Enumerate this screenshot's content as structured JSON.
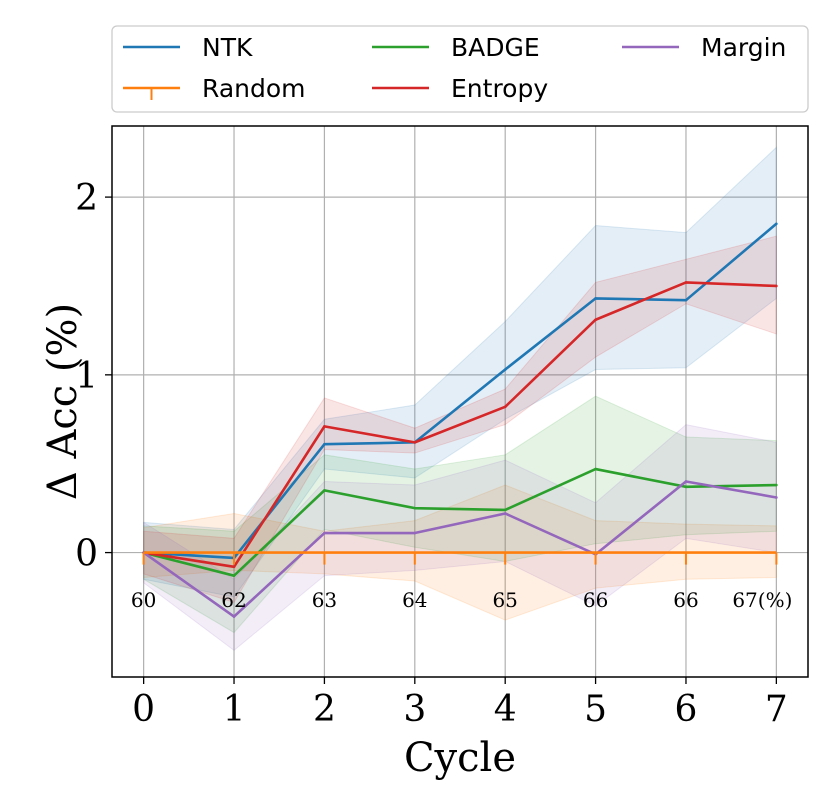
{
  "chart_data": {
    "type": "line",
    "title": "",
    "xlabel": "Cycle",
    "ylabel": "Δ Acc (%)",
    "x": [
      0,
      1,
      2,
      3,
      4,
      5,
      6,
      7
    ],
    "xlim": [
      -0.35,
      7.35
    ],
    "ylim": [
      -0.7,
      2.4
    ],
    "yticks": [
      0,
      1,
      2
    ],
    "grid": true,
    "legend_position": "top",
    "baseline_accuracy_labels": [
      "60",
      "62",
      "63",
      "64",
      "65",
      "66",
      "66",
      "67(%)"
    ],
    "series": [
      {
        "name": "NTK",
        "color": "#1f77b4",
        "values": [
          0.0,
          -0.03,
          0.61,
          0.62,
          1.03,
          1.43,
          1.42,
          1.85
        ],
        "lower": [
          -0.15,
          -0.25,
          0.47,
          0.42,
          0.75,
          1.03,
          1.04,
          1.43
        ],
        "upper": [
          0.17,
          0.13,
          0.75,
          0.83,
          1.3,
          1.84,
          1.8,
          2.28
        ]
      },
      {
        "name": "Random",
        "color": "#ff7f0e",
        "marker": "tick",
        "values": [
          0,
          0,
          0,
          0,
          0,
          0,
          0,
          0
        ],
        "lower": [
          -0.14,
          -0.1,
          -0.12,
          -0.16,
          -0.38,
          -0.2,
          -0.15,
          -0.14
        ],
        "upper": [
          0.14,
          0.22,
          0.12,
          0.18,
          0.38,
          0.18,
          0.16,
          0.15
        ]
      },
      {
        "name": "BADGE",
        "color": "#2ca02c",
        "values": [
          0.0,
          -0.13,
          0.35,
          0.25,
          0.24,
          0.47,
          0.37,
          0.38
        ],
        "lower": [
          -0.15,
          -0.45,
          0.13,
          0.03,
          -0.05,
          0.05,
          0.1,
          0.12
        ],
        "upper": [
          0.15,
          0.12,
          0.55,
          0.47,
          0.55,
          0.88,
          0.65,
          0.63
        ]
      },
      {
        "name": "Entropy",
        "color": "#d62728",
        "values": [
          0.0,
          -0.08,
          0.71,
          0.62,
          0.82,
          1.31,
          1.52,
          1.5
        ],
        "lower": [
          -0.12,
          -0.28,
          0.58,
          0.56,
          0.72,
          1.1,
          1.4,
          1.23
        ],
        "upper": [
          0.12,
          0.08,
          0.87,
          0.7,
          0.92,
          1.52,
          1.65,
          1.78
        ]
      },
      {
        "name": "Margin",
        "color": "#9467bd",
        "values": [
          0.0,
          -0.36,
          0.11,
          0.11,
          0.22,
          -0.01,
          0.4,
          0.31
        ],
        "lower": [
          -0.17,
          -0.55,
          -0.13,
          -0.1,
          -0.05,
          -0.3,
          0.08,
          0.0
        ],
        "upper": [
          0.17,
          -0.15,
          0.4,
          0.38,
          0.52,
          0.28,
          0.72,
          0.62
        ]
      }
    ],
    "legend_order": [
      "NTK",
      "Random",
      "BADGE",
      "Entropy",
      "Margin"
    ]
  }
}
